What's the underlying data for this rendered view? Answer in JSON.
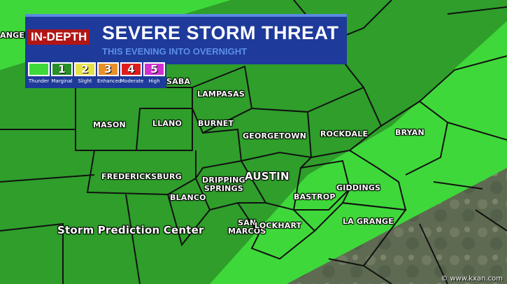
{
  "header": {
    "badge": "IN-DEPTH",
    "title": "SEVERE STORM THREAT",
    "subtitle": "THIS EVENING INTO OVERNIGHT"
  },
  "legend": [
    {
      "num": "",
      "label": "Thunder",
      "color": "#3fd83a"
    },
    {
      "num": "1",
      "label": "Marginal",
      "color": "#2a8f26"
    },
    {
      "num": "2",
      "label": "Slight",
      "color": "#e6e04a"
    },
    {
      "num": "3",
      "label": "Enhanced",
      "color": "#e8902a"
    },
    {
      "num": "4",
      "label": "Moderate",
      "color": "#e21c1c"
    },
    {
      "num": "5",
      "label": "High",
      "color": "#d030d0"
    }
  ],
  "zone_colors": {
    "thunder": "#3fd83a",
    "marginal": "#2f9e2b"
  },
  "places": {
    "san_angelo": "ANGELO",
    "san_saba": "SABA",
    "lampasas": "LAMPASAS",
    "mason": "MASON",
    "llano": "LLANO",
    "burnet": "BURNET",
    "georgetown": "GEORGETOWN",
    "rockdale": "ROCKDALE",
    "bryan": "BRYAN",
    "fredericksburg": "FREDERICKSBURG",
    "dripping_springs": "DRIPPING\nSPRINGS",
    "austin": "AUSTIN",
    "blanco": "BLANCO",
    "bastrop": "BASTROP",
    "giddings": "GIDDINGS",
    "san_marcos": "SAN\nMARCOS",
    "lockhart": "LOCKHART",
    "la_grange": "LA GRANGE"
  },
  "credit": "Storm Prediction Center",
  "watermark": "© www.kxan.com"
}
